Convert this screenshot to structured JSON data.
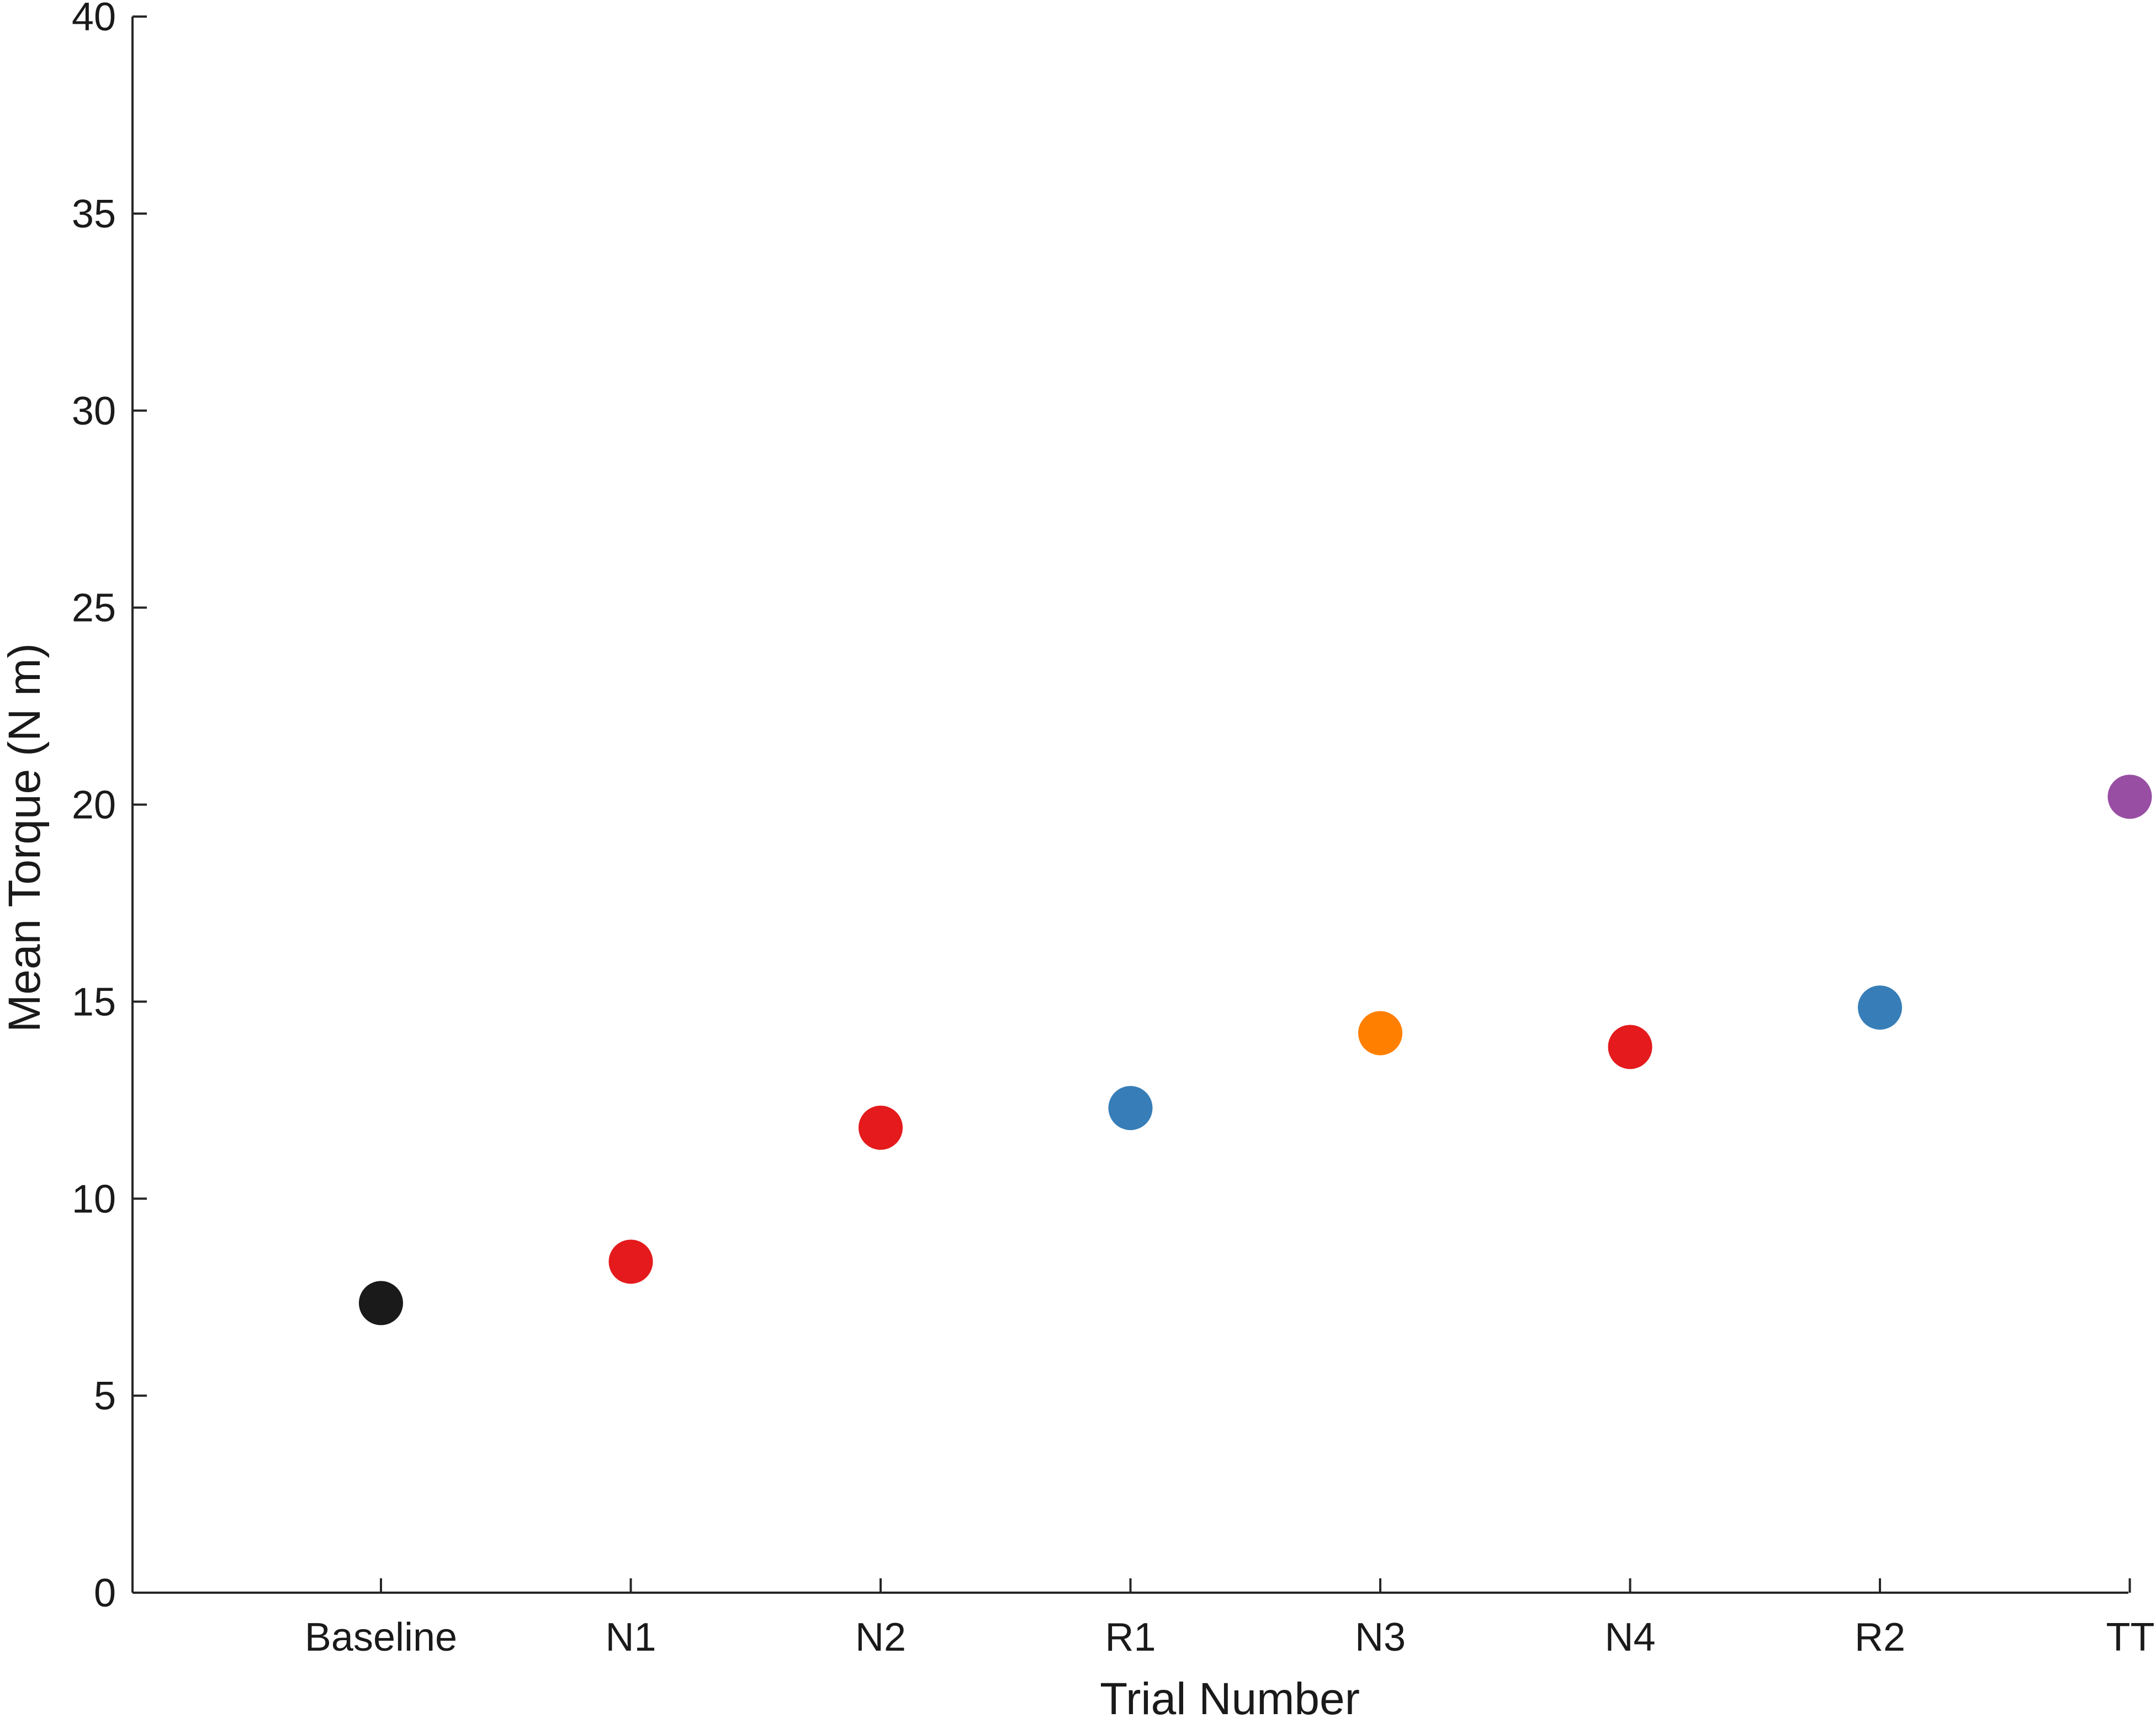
{
  "chart_data": {
    "type": "scatter",
    "title": "",
    "xlabel": "Trial Number",
    "ylabel": "Mean Torque (N m)",
    "categories": [
      "Baseline",
      "N1",
      "N2",
      "R1",
      "N3",
      "N4",
      "R2",
      "TT"
    ],
    "values": [
      7.35,
      8.4,
      11.8,
      12.3,
      14.2,
      13.85,
      14.85,
      20.2
    ],
    "point_colors": [
      "#1a1a1a",
      "#e41a1c",
      "#e41a1c",
      "#377eb8",
      "#ff7f00",
      "#e41a1c",
      "#377eb8",
      "#984ea3"
    ],
    "ylim": [
      0,
      40
    ],
    "yticks": [
      "0",
      "5",
      "10",
      "15",
      "20",
      "25",
      "30",
      "35",
      "40"
    ],
    "grid": false,
    "legend": "none"
  }
}
